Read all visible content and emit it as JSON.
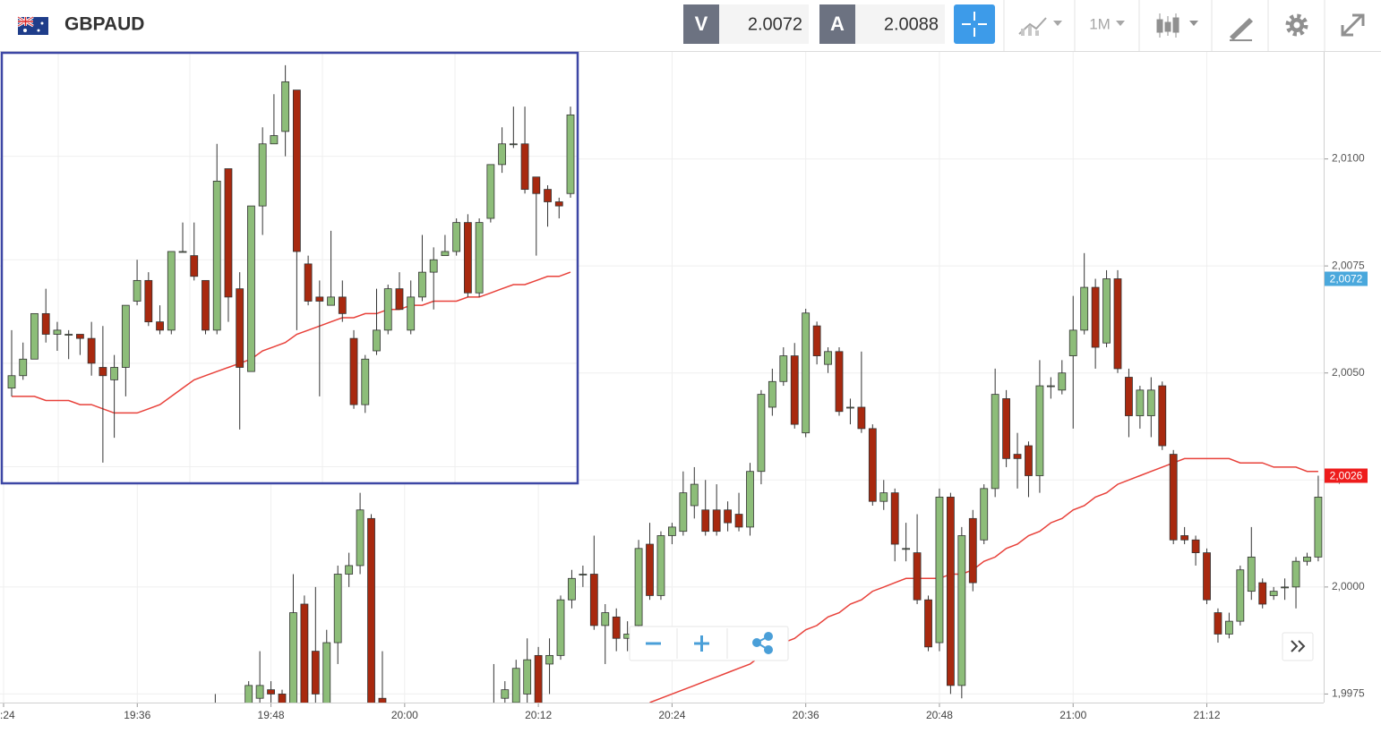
{
  "toolbar": {
    "symbol": "GBPAUD",
    "bid_label": "V",
    "bid": "2.0072",
    "ask_label": "A",
    "ask": "2.0088",
    "timeframe": "1M"
  },
  "chart_data": {
    "type": "candlestick",
    "up_color": "#8dbd79",
    "down_color": "#a8290f",
    "categories": [
      ":24",
      null,
      null,
      null,
      null,
      null,
      null,
      null,
      null,
      null,
      null,
      null,
      "19:36",
      null,
      null,
      null,
      null,
      null,
      null,
      null,
      null,
      null,
      null,
      null,
      "19:48",
      null,
      null,
      null,
      null,
      null,
      null,
      null,
      null,
      null,
      null,
      null,
      "20:00",
      null,
      null,
      null,
      null,
      null,
      null,
      null,
      null,
      null,
      null,
      null,
      "20:12",
      null,
      null,
      null,
      null,
      null,
      null,
      null,
      null,
      null,
      null,
      null,
      "20:24",
      null,
      null,
      null,
      null,
      null,
      null,
      null,
      null,
      null,
      null,
      null,
      "20:36",
      null,
      null,
      null,
      null,
      null,
      null,
      null,
      null,
      null,
      null,
      null,
      "20:48",
      null,
      null,
      null,
      null,
      null,
      null,
      null,
      null,
      null,
      null,
      null,
      "21:00",
      null,
      null,
      null,
      null,
      null,
      null,
      null,
      null,
      null,
      null,
      null,
      "21:12",
      null,
      null,
      null,
      null,
      null,
      null,
      null,
      null,
      null,
      null
    ],
    "candles": [
      null,
      null,
      null,
      null,
      null,
      null,
      null,
      null,
      null,
      null,
      null,
      null,
      null,
      null,
      null,
      null,
      null,
      null,
      null,
      [
        1.997,
        1.9975,
        1.9965,
        1.9968
      ],
      null,
      null,
      [
        1.9972,
        1.9978,
        1.997,
        1.9977
      ],
      [
        1.9974,
        1.9985,
        1.997,
        1.9977
      ],
      [
        1.9976,
        1.9978,
        1.9972,
        1.9975
      ],
      [
        1.9975,
        1.9976,
        1.9968,
        1.997
      ],
      [
        1.9972,
        2.0003,
        1.997,
        1.9994
      ],
      [
        1.9996,
        1.9998,
        1.9968,
        1.9972
      ],
      [
        1.9985,
        2.0,
        1.997,
        1.9975
      ],
      [
        1.9972,
        1.999,
        1.997,
        1.9987
      ],
      [
        1.9987,
        2.0005,
        1.9982,
        2.0003
      ],
      [
        2.0003,
        2.0008,
        2.0,
        2.0005
      ],
      [
        2.0005,
        2.0022,
        2.0003,
        2.0018
      ],
      [
        2.0016,
        2.0017,
        1.997,
        1.9972
      ],
      [
        1.9974,
        1.9985,
        1.9966,
        1.997
      ],
      null,
      null,
      null,
      null,
      null,
      null,
      null,
      null,
      null,
      [
        1.9968,
        1.9982,
        1.9965,
        1.9972
      ],
      [
        1.9974,
        1.9978,
        1.997,
        1.9976
      ],
      [
        1.9973,
        1.9983,
        1.997,
        1.9981
      ],
      [
        1.9975,
        1.9988,
        1.997,
        1.9983
      ],
      [
        1.9984,
        1.9986,
        1.9968,
        1.9972
      ],
      [
        1.9982,
        1.9988,
        1.9975,
        1.9984
      ],
      [
        1.9984,
        1.9998,
        1.9983,
        1.9997
      ],
      [
        1.9997,
        2.0004,
        1.9995,
        2.0002
      ],
      [
        2.0003,
        2.0005,
        2.0,
        2.0003
      ],
      [
        2.0003,
        2.0012,
        1.999,
        1.9991
      ],
      [
        1.9991,
        1.9996,
        1.9982,
        1.9994
      ],
      [
        1.9993,
        1.9995,
        1.9985,
        1.9988
      ],
      [
        1.9988,
        1.9992,
        1.9985,
        1.9989
      ],
      [
        1.9991,
        2.0011,
        1.999,
        2.0009
      ],
      [
        2.001,
        2.0015,
        1.9997,
        1.9998
      ],
      [
        1.9998,
        2.0013,
        1.9997,
        2.0012
      ],
      [
        2.0012,
        2.0015,
        2.001,
        2.0014
      ],
      [
        2.0013,
        2.0027,
        2.0012,
        2.0022
      ],
      [
        2.0019,
        2.0028,
        2.0016,
        2.0024
      ],
      [
        2.0018,
        2.0025,
        2.0012,
        2.0013
      ],
      [
        2.0018,
        2.0024,
        2.0012,
        2.0013
      ],
      [
        2.0018,
        2.002,
        2.0013,
        2.0015
      ],
      [
        2.0017,
        2.0022,
        2.0013,
        2.0014
      ],
      [
        2.0014,
        2.0029,
        2.0012,
        2.0027
      ],
      [
        2.0027,
        2.0046,
        2.0024,
        2.0045
      ],
      [
        2.0042,
        2.0051,
        2.004,
        2.0048
      ],
      [
        2.0048,
        2.0056,
        2.0047,
        2.0054
      ],
      [
        2.0054,
        2.0057,
        2.0037,
        2.0038
      ],
      [
        2.0036,
        2.0065,
        2.0035,
        2.0064
      ],
      [
        2.0061,
        2.0062,
        2.0052,
        2.0054
      ],
      [
        2.0052,
        2.0056,
        2.005,
        2.0055
      ],
      [
        2.0055,
        2.0056,
        2.004,
        2.0041
      ],
      [
        2.0042,
        2.0044,
        2.0038,
        2.0042
      ],
      [
        2.0042,
        2.0055,
        2.0036,
        2.0037
      ],
      [
        2.0037,
        2.0038,
        2.0019,
        2.002
      ],
      [
        2.002,
        2.0025,
        2.0018,
        2.0022
      ],
      [
        2.0022,
        2.0023,
        2.0006,
        2.001
      ],
      [
        2.0009,
        2.0015,
        2.0006,
        2.0009
      ],
      [
        2.0008,
        2.0017,
        1.9996,
        1.9997
      ],
      [
        1.9997,
        1.9998,
        1.9985,
        1.9986
      ],
      [
        1.9987,
        2.0023,
        1.9985,
        2.0021
      ],
      [
        2.0021,
        2.0022,
        1.9975,
        1.9977
      ],
      [
        1.9977,
        2.0014,
        1.9974,
        2.0012
      ],
      [
        2.0016,
        2.0018,
        1.9999,
        2.0001
      ],
      [
        2.0011,
        2.0024,
        2.001,
        2.0023
      ],
      [
        2.0023,
        2.0051,
        2.0021,
        2.0045
      ],
      [
        2.0044,
        2.0046,
        2.0028,
        2.003
      ],
      [
        2.0031,
        2.0036,
        2.0023,
        2.003
      ],
      [
        2.0033,
        2.0034,
        2.0021,
        2.0026
      ],
      [
        2.0026,
        2.0053,
        2.0022,
        2.0047
      ],
      [
        2.0047,
        2.0049,
        2.0044,
        2.0047
      ],
      [
        2.0046,
        2.0053,
        2.0045,
        2.005
      ],
      [
        2.0054,
        2.0068,
        2.0037,
        2.006
      ],
      [
        2.006,
        2.0078,
        2.0059,
        2.007
      ],
      [
        2.007,
        2.0072,
        2.0051,
        2.0056
      ],
      [
        2.0057,
        2.0074,
        2.0056,
        2.0072
      ],
      [
        2.0072,
        2.0074,
        2.005,
        2.0051
      ],
      [
        2.0049,
        2.0051,
        2.0035,
        2.004
      ],
      [
        2.004,
        2.0047,
        2.0037,
        2.0046
      ],
      [
        2.004,
        2.0049,
        2.0035,
        2.0046
      ],
      [
        2.0047,
        2.0048,
        2.0032,
        2.0033
      ],
      [
        2.0031,
        2.0032,
        2.001,
        2.0011
      ],
      [
        2.0012,
        2.0014,
        2.001,
        2.0011
      ],
      [
        2.0011,
        2.0012,
        2.0005,
        2.0008
      ],
      [
        2.0008,
        2.0009,
        1.9996,
        1.9997
      ],
      [
        1.9994,
        1.9995,
        1.9987,
        1.9989
      ],
      [
        1.9989,
        1.9994,
        1.9988,
        1.9992
      ],
      [
        1.9992,
        2.0005,
        1.9991,
        2.0004
      ],
      [
        1.9999,
        2.0014,
        1.9997,
        2.0007
      ],
      [
        2.0001,
        2.0002,
        1.9995,
        1.9996
      ],
      [
        1.9998,
        2.0,
        1.9997,
        1.9999
      ],
      [
        2.0,
        2.0002,
        1.9997,
        2.0
      ],
      [
        2.0,
        2.0007,
        1.9995,
        2.0006
      ],
      [
        2.0006,
        2.0008,
        2.0005,
        2.0007
      ],
      [
        2.0007,
        2.0026,
        2.0006,
        2.0021
      ]
    ],
    "ma": {
      "color": "#e8413a",
      "values": [
        null,
        null,
        null,
        null,
        null,
        null,
        null,
        null,
        null,
        null,
        null,
        null,
        null,
        null,
        null,
        null,
        null,
        null,
        null,
        null,
        null,
        null,
        null,
        null,
        null,
        null,
        null,
        null,
        null,
        null,
        null,
        null,
        null,
        null,
        null,
        null,
        null,
        null,
        null,
        null,
        null,
        null,
        null,
        null,
        null,
        null,
        null,
        null,
        null,
        null,
        null,
        null,
        null,
        null,
        null,
        null,
        null,
        null,
        1.9973,
        1.9974,
        1.9975,
        1.9976,
        1.9977,
        1.9978,
        1.9979,
        1.998,
        1.9981,
        1.9982,
        1.9984,
        1.9985,
        1.9987,
        1.9988,
        1.999,
        1.9991,
        1.9993,
        1.9994,
        1.9996,
        1.9997,
        1.9999,
        2.0,
        2.0001,
        2.0002,
        2.0002,
        2.0002,
        2.0002,
        2.0003,
        2.0003,
        2.0004,
        2.0006,
        2.0007,
        2.0009,
        2.001,
        2.0012,
        2.0013,
        2.0015,
        2.0016,
        2.0018,
        2.0019,
        2.0021,
        2.0022,
        2.0024,
        2.0025,
        2.0026,
        2.0027,
        2.0028,
        2.0029,
        2.003,
        2.003,
        2.003,
        2.003,
        2.003,
        2.0029,
        2.0029,
        2.0029,
        2.0028,
        2.0028,
        2.0028,
        2.0027,
        2.0027
      ]
    },
    "ylim": [
      1.9973,
      2.0125
    ],
    "yticks": [
      {
        "value": 2.01,
        "label": "2,0100"
      },
      {
        "value": 2.0075,
        "label": "2,0075"
      },
      {
        "value": 2.005,
        "label": "2,0050"
      },
      {
        "value": 2.0025,
        "label": "2,0025"
      },
      {
        "value": 2,
        "label": "2,0000"
      },
      {
        "value": 1.9975,
        "label": "1,9975"
      }
    ],
    "grid": true,
    "price_labels": [
      {
        "value": 2.0072,
        "label": "2,0072",
        "color": "#4aa8dc"
      },
      {
        "value": 2.0026,
        "label": "2,0026",
        "color": "#ee1c1c"
      }
    ],
    "inset": {
      "ylim": [
        2.0021,
        2.0125
      ],
      "ygrid": [
        2.01,
        2.0075,
        2.005,
        2.0025
      ],
      "candles": [
        [
          2.0044,
          2.0058,
          2.0042,
          2.0047
        ],
        [
          2.0047,
          2.0055,
          2.0046,
          2.0051
        ],
        [
          2.0051,
          2.0062,
          2.0051,
          2.0062
        ],
        [
          2.0062,
          2.0068,
          2.0055,
          2.0057
        ],
        [
          2.0057,
          2.006,
          2.0053,
          2.0058
        ],
        [
          2.0057,
          2.0058,
          2.0051,
          2.0057
        ],
        [
          2.0057,
          2.0057,
          2.0052,
          2.0056
        ],
        [
          2.0056,
          2.006,
          2.0047,
          2.005
        ],
        [
          2.0049,
          2.0059,
          2.0026,
          2.0047
        ],
        [
          2.0046,
          2.0052,
          2.0032,
          2.0049
        ],
        [
          2.0049,
          2.0064,
          2.0042,
          2.0064
        ],
        [
          2.0065,
          2.0075,
          2.0064,
          2.007
        ],
        [
          2.007,
          2.0072,
          2.0059,
          2.006
        ],
        [
          2.006,
          2.0064,
          2.0057,
          2.0058
        ],
        [
          2.0058,
          2.0077,
          2.0057,
          2.0077
        ],
        [
          2.0077,
          2.0084,
          2.0077,
          2.0077
        ],
        [
          2.0076,
          2.0084,
          2.007,
          2.0071
        ],
        [
          2.007,
          2.007,
          2.0057,
          2.0058
        ],
        [
          2.0058,
          2.0103,
          2.0057,
          2.0094
        ],
        [
          2.0097,
          2.0097,
          2.006,
          2.0066
        ],
        [
          2.0068,
          2.0072,
          2.0034,
          2.0049
        ],
        [
          2.0048,
          2.0088,
          2.0048,
          2.0088
        ],
        [
          2.0088,
          2.0107,
          2.0081,
          2.0103
        ],
        [
          2.0103,
          2.0115,
          2.0103,
          2.0105
        ],
        [
          2.0106,
          2.0122,
          2.01,
          2.0118
        ],
        [
          2.0116,
          2.0116,
          2.0058,
          2.0077
        ],
        [
          2.0074,
          2.0076,
          2.0064,
          2.0065
        ],
        [
          2.0066,
          2.007,
          2.0042,
          2.0065
        ],
        [
          2.0064,
          2.0082,
          2.0064,
          2.0066
        ],
        [
          2.0066,
          2.007,
          2.006,
          2.0062
        ],
        [
          2.0056,
          2.0058,
          2.0039,
          2.004
        ],
        [
          2.004,
          2.0052,
          2.0038,
          2.0051
        ],
        [
          2.0053,
          2.0068,
          2.0052,
          2.0058
        ],
        [
          2.0058,
          2.0069,
          2.0057,
          2.0068
        ],
        [
          2.0068,
          2.0072,
          2.0063,
          2.0063
        ],
        [
          2.0058,
          2.007,
          2.0057,
          2.0066
        ],
        [
          2.0066,
          2.0081,
          2.0065,
          2.0072
        ],
        [
          2.0072,
          2.0078,
          2.0063,
          2.0075
        ],
        [
          2.0076,
          2.0081,
          2.0076,
          2.0077
        ],
        [
          2.0077,
          2.0085,
          2.0076,
          2.0084
        ],
        [
          2.0084,
          2.0086,
          2.0066,
          2.0067
        ],
        [
          2.0067,
          2.0085,
          2.0066,
          2.0084
        ],
        [
          2.0085,
          2.0098,
          2.0084,
          2.0098
        ],
        [
          2.0098,
          2.0107,
          2.0096,
          2.0103
        ],
        [
          2.0103,
          2.0112,
          2.0102,
          2.0103
        ],
        [
          2.0103,
          2.0112,
          2.0091,
          2.0092
        ],
        [
          2.0095,
          2.0095,
          2.0076,
          2.0091
        ],
        [
          2.0092,
          2.0093,
          2.0083,
          2.0089
        ],
        [
          2.0089,
          2.009,
          2.0085,
          2.0088
        ],
        [
          2.0091,
          2.0112,
          2.009,
          2.011
        ]
      ],
      "ma": {
        "color": "#e8413a",
        "values": [
          2.0042,
          2.0042,
          2.0042,
          2.0041,
          2.0041,
          2.0041,
          2.004,
          2.004,
          2.0039,
          2.0038,
          2.0038,
          2.0038,
          2.0039,
          2.004,
          2.0042,
          2.0044,
          2.0046,
          2.0047,
          2.0048,
          2.0049,
          2.005,
          2.0051,
          2.0053,
          2.0054,
          2.0055,
          2.0057,
          2.0058,
          2.0059,
          2.006,
          2.0061,
          2.0061,
          2.0062,
          2.0062,
          2.0063,
          2.0063,
          2.0064,
          2.0064,
          2.0065,
          2.0065,
          2.0065,
          2.0066,
          2.0066,
          2.0067,
          2.0068,
          2.0069,
          2.0069,
          2.007,
          2.0071,
          2.0071,
          2.0072
        ]
      }
    }
  }
}
